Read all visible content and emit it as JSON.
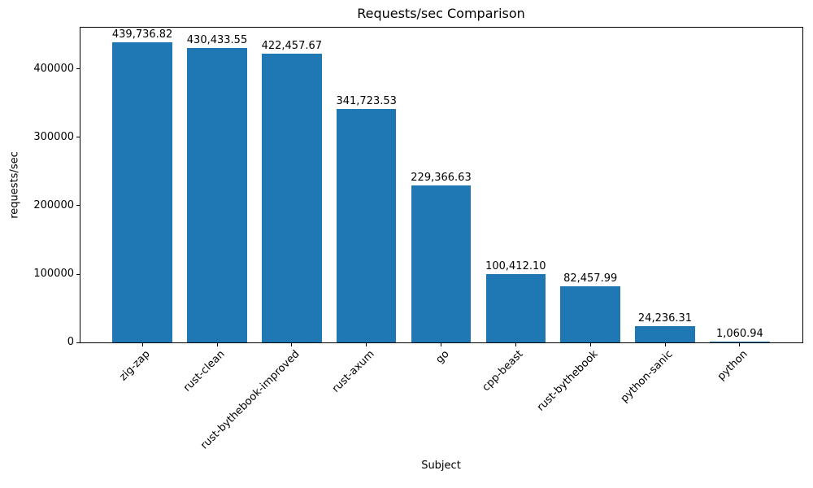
{
  "figure": {
    "title": "Requests/sec Comparison",
    "xlabel": "Subject",
    "ylabel": "requests/sec"
  },
  "chart_data": {
    "type": "bar",
    "title": "Requests/sec Comparison",
    "xlabel": "Subject",
    "ylabel": "requests/sec",
    "categories": [
      "zig-zap",
      "rust-clean",
      "rust-bythebook-improved",
      "rust-axum",
      "go",
      "cpp-beast",
      "rust-bythebook",
      "python-sanic",
      "python"
    ],
    "values": [
      439736.82,
      430433.55,
      422457.67,
      341723.53,
      229366.63,
      100412.1,
      82457.99,
      24236.31,
      1060.94
    ],
    "value_labels": [
      "439,736.82",
      "430,433.55",
      "422,457.67",
      "341,723.53",
      "229,366.63",
      "100,412.10",
      "82,457.99",
      "24,236.31",
      "1,060.94"
    ],
    "yticks": [
      0,
      100000,
      200000,
      300000,
      400000
    ],
    "ytick_labels": [
      "0",
      "100000",
      "200000",
      "300000",
      "400000"
    ],
    "ylim": [
      0,
      461723
    ],
    "bar_color": "#1f77b4",
    "grid": false,
    "legend": "none",
    "x_tick_rotation_deg": 45
  }
}
